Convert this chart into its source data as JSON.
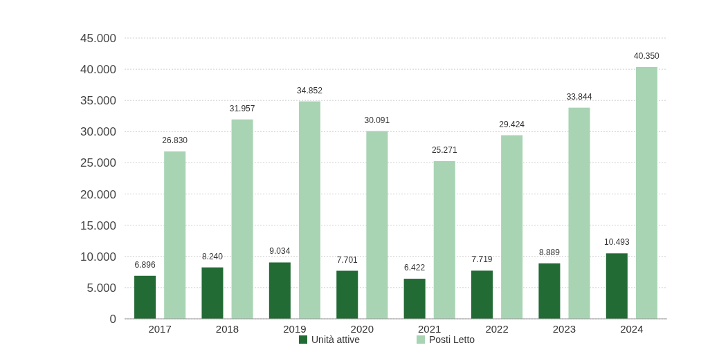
{
  "chart_data": {
    "type": "bar",
    "categories": [
      "2017",
      "2018",
      "2019",
      "2020",
      "2021",
      "2022",
      "2023",
      "2024"
    ],
    "series": [
      {
        "name": "Unità attive",
        "color": "#236b35",
        "values": [
          6896,
          8240,
          9034,
          7701,
          6422,
          7719,
          8889,
          10493
        ],
        "value_labels": [
          "6.896",
          "8.240",
          "9.034",
          "7.701",
          "6.422",
          "7.719",
          "8.889",
          "10.493"
        ]
      },
      {
        "name": "Posti Letto",
        "color": "#a8d4b4",
        "values": [
          26830,
          31957,
          34852,
          30091,
          25271,
          29424,
          33844,
          40350
        ],
        "value_labels": [
          "26.830",
          "31.957",
          "34.852",
          "30.091",
          "25.271",
          "29.424",
          "33.844",
          "40.350"
        ]
      }
    ],
    "ylim": [
      0,
      45000
    ],
    "yticks": [
      0,
      {
        "value": 5000,
        "label": "5.000"
      },
      {
        "value": 10000,
        "label": "10.000"
      },
      {
        "value": 15000,
        "label": "15.000"
      },
      {
        "value": 20000,
        "label": "20.000"
      },
      {
        "value": 25000,
        "label": "25.000"
      },
      {
        "value": 30000,
        "label": "30.000"
      },
      {
        "value": 35000,
        "label": "35.000"
      },
      {
        "value": 40000,
        "label": "40.000"
      },
      {
        "value": 45000,
        "label": "45.000"
      }
    ],
    "grid": "y",
    "legend": "bottom"
  }
}
